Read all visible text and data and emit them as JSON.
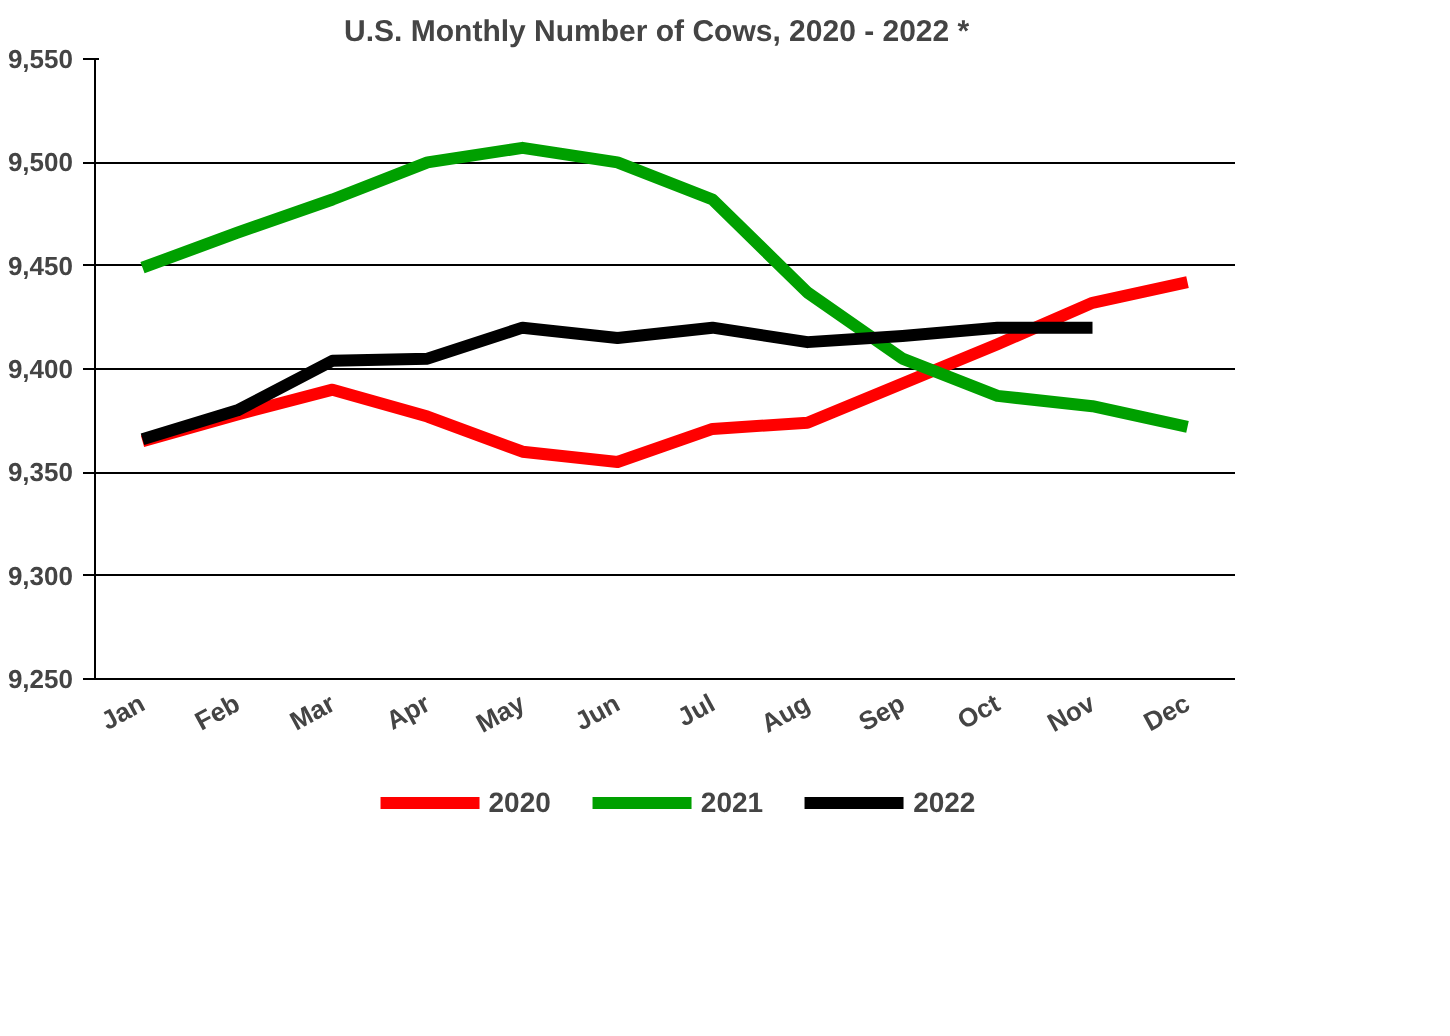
{
  "chart_data": {
    "type": "line",
    "title": "U.S. Monthly Number of Cows, 2020  - 2022  *",
    "categories": [
      "Jan",
      "Feb",
      "Mar",
      "Apr",
      "May",
      "Jun",
      "Jul",
      "Aug",
      "Sep",
      "Oct",
      "Nov",
      "Dec"
    ],
    "series": [
      {
        "name": "2020",
        "color": "#ff0000",
        "values": [
          9365,
          9378,
          9390,
          9377,
          9360,
          9355,
          9371,
          9374,
          9393,
          9412,
          9432,
          9442
        ]
      },
      {
        "name": "2021",
        "color": "#00a000",
        "values": [
          9449,
          9466,
          9482,
          9500,
          9507,
          9500,
          9482,
          9437,
          9405,
          9387,
          9382,
          9372
        ]
      },
      {
        "name": "2022",
        "color": "#000000",
        "values": [
          9366,
          9380,
          9404,
          9405,
          9420,
          9415,
          9420,
          9413,
          9416,
          9420,
          9420,
          null
        ]
      }
    ],
    "ylim": [
      9250,
      9550
    ],
    "yticks": [
      {
        "value": 9250,
        "label": "9,250"
      },
      {
        "value": 9300,
        "label": "9,300"
      },
      {
        "value": 9350,
        "label": "9,350"
      },
      {
        "value": 9400,
        "label": "9,400"
      },
      {
        "value": 9450,
        "label": "9,450"
      },
      {
        "value": 9500,
        "label": "9,500"
      },
      {
        "value": 9550,
        "label": "9,550"
      }
    ],
    "grid": "y",
    "legend": "bottom",
    "marker": "none",
    "line_style": "solid"
  }
}
